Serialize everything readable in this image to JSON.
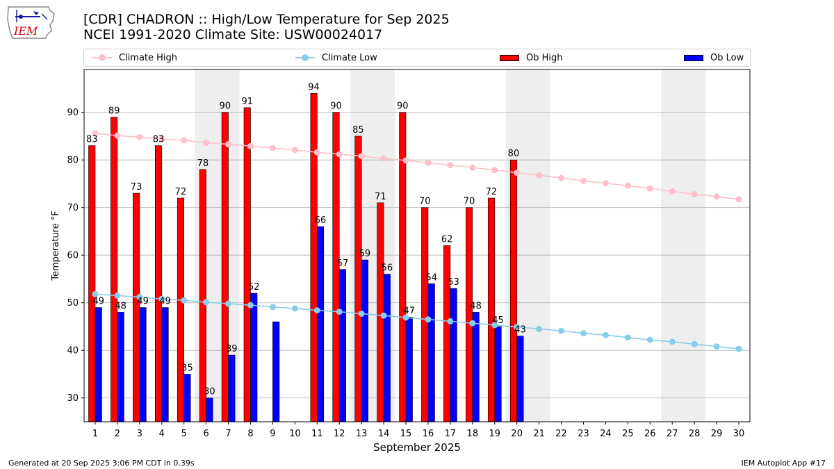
{
  "header": {
    "title_line1": "[CDR] CHADRON :: High/Low Temperature for Sep 2025",
    "title_line2": "NCEI 1991-2020 Climate Site: USW00024017"
  },
  "logo": {
    "text": "IEM",
    "color": "#cc0000"
  },
  "footer": {
    "left": "Generated at 20 Sep 2025 3:06 PM CDT in 0.39s",
    "right": "IEM Autoplot App #17"
  },
  "legend": {
    "climate_high": "Climate High",
    "climate_low": "Climate Low",
    "ob_high": "Ob High",
    "ob_low": "Ob Low"
  },
  "colors": {
    "climate_high": "#ffc0cb",
    "climate_low": "#87ceeb",
    "ob_high": "#ff0000",
    "ob_low": "#0000ff",
    "weekend_shade": "#eeeeee",
    "grid": "#b0b0b0"
  },
  "chart_data": {
    "type": "bar",
    "xlabel": "September 2025",
    "ylabel": "Temperature °F",
    "ylim": [
      25,
      99
    ],
    "yticks": [
      30,
      40,
      50,
      60,
      70,
      80,
      90
    ],
    "x": [
      1,
      2,
      3,
      4,
      5,
      6,
      7,
      8,
      9,
      10,
      11,
      12,
      13,
      14,
      15,
      16,
      17,
      18,
      19,
      20,
      21,
      22,
      23,
      24,
      25,
      26,
      27,
      28,
      29,
      30
    ],
    "weekend_days": [
      6,
      7,
      13,
      14,
      20,
      21,
      27,
      28
    ],
    "grid": "horizontal",
    "legend_position": "top",
    "series": [
      {
        "name": "Ob High",
        "kind": "bar",
        "values": [
          83,
          89,
          73,
          83,
          72,
          78,
          90,
          91,
          null,
          null,
          94,
          90,
          85,
          71,
          90,
          70,
          62,
          70,
          72,
          80,
          null,
          null,
          null,
          null,
          null,
          null,
          null,
          null,
          null,
          null
        ],
        "labels": [
          "83",
          "89",
          "73",
          "83",
          "72",
          "78",
          "90",
          "91",
          "",
          "",
          "94",
          "90",
          "85",
          "71",
          "90",
          "70",
          "62",
          "70",
          "72",
          "80",
          "",
          "",
          "",
          "",
          "",
          "",
          "",
          "",
          "",
          ""
        ]
      },
      {
        "name": "Ob Low",
        "kind": "bar",
        "values": [
          49,
          48,
          49,
          49,
          35,
          30,
          39,
          52,
          46,
          null,
          66,
          57,
          59,
          56,
          47,
          54,
          53,
          48,
          45,
          43,
          null,
          null,
          null,
          null,
          null,
          null,
          null,
          null,
          null,
          null
        ],
        "labels": [
          "49",
          "48",
          "49",
          "49",
          "35",
          "30",
          "39",
          "52",
          "",
          "",
          "66",
          "57",
          "59",
          "56",
          "47",
          "54",
          "53",
          "48",
          "45",
          "43",
          "",
          "",
          "",
          "",
          "",
          "",
          "",
          "",
          "",
          ""
        ]
      },
      {
        "name": "Climate High",
        "kind": "line",
        "values": [
          85.6,
          85.1,
          84.8,
          84.4,
          84.1,
          83.6,
          83.3,
          82.9,
          82.5,
          82.1,
          81.6,
          81.2,
          80.8,
          80.3,
          79.9,
          79.4,
          78.9,
          78.4,
          77.9,
          77.3,
          76.8,
          76.2,
          75.6,
          75.1,
          74.6,
          74.0,
          73.4,
          72.8,
          72.3,
          71.7
        ]
      },
      {
        "name": "Climate Low",
        "kind": "line",
        "values": [
          51.8,
          51.5,
          51.2,
          50.8,
          50.5,
          50.1,
          49.8,
          49.5,
          49.1,
          48.8,
          48.4,
          48.1,
          47.7,
          47.3,
          46.9,
          46.5,
          46.1,
          45.7,
          45.3,
          44.9,
          44.5,
          44.1,
          43.6,
          43.2,
          42.7,
          42.2,
          41.8,
          41.3,
          40.8,
          40.3
        ]
      }
    ]
  }
}
